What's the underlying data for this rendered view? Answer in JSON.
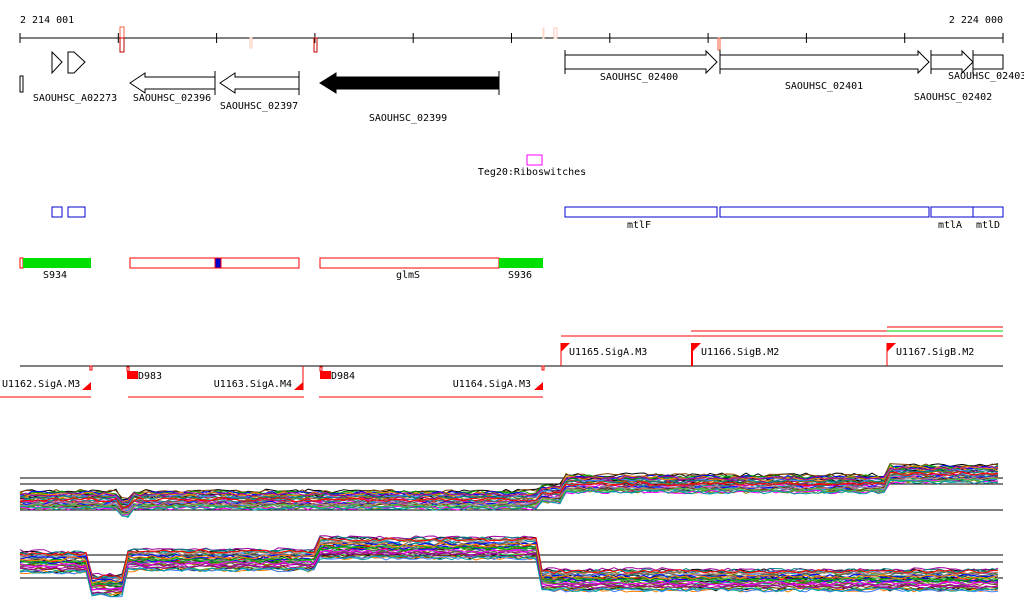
{
  "coords": {
    "start": "2 214 001",
    "end": "2 224 000"
  },
  "genes": [
    {
      "label": "SAOUHSC_A02273"
    },
    {
      "label": "SAOUHSC_02396"
    },
    {
      "label": "SAOUHSC_02397"
    },
    {
      "label": "SAOUHSC_02399"
    },
    {
      "label": "SAOUHSC_02400"
    },
    {
      "label": "SAOUHSC_02401"
    },
    {
      "label": "SAOUHSC_02402"
    },
    {
      "label": "SAOUHSC_02403"
    }
  ],
  "riboswitch": {
    "label": "Teg20:Riboswitches"
  },
  "operons": [
    {
      "label": "mtlF"
    },
    {
      "label": "mtlA"
    },
    {
      "label": "mtlD"
    }
  ],
  "srna": [
    {
      "label": "S934"
    },
    {
      "label": "glmS"
    },
    {
      "label": "S936"
    }
  ],
  "transcription_units": [
    {
      "label": "U1162.SigA.M3"
    },
    {
      "label": "D983"
    },
    {
      "label": "U1163.SigA.M4"
    },
    {
      "label": "D984"
    },
    {
      "label": "U1164.SigA.M3"
    },
    {
      "label": "U1165.SigA.M3"
    },
    {
      "label": "U1166.SigB.M2"
    },
    {
      "label": "U1167.SigB.M2"
    }
  ],
  "colors": {
    "red": "#ff0000",
    "green": "#00e000",
    "blue": "#0000cc",
    "magenta": "#ff00ff"
  }
}
